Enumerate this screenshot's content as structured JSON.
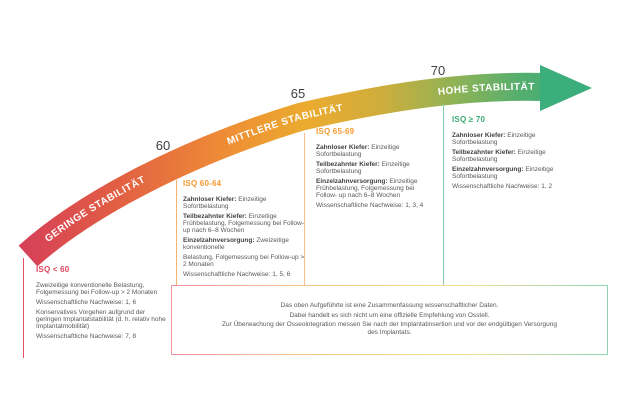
{
  "band": {
    "labels": {
      "low": "GERINGE STABILITÄT",
      "mid": "MITTLERE STABILITÄT",
      "high": "HOHE STABILITÄT"
    },
    "ticks": [
      "60",
      "65",
      "70"
    ],
    "gradient_stops": [
      "#d64059",
      "#e05a45",
      "#ee8b36",
      "#ecab2f",
      "#cfad3c",
      "#8fb356",
      "#52ae70",
      "#3bae7b"
    ],
    "arrowhead_color": "#3bae7b"
  },
  "columns": [
    {
      "title": "ISQ < 60",
      "title_color": "#e0445c",
      "line_color": "#e25064",
      "paragraphs": [
        {
          "lead": "",
          "text": "Zweizeitige konventionelle Belastung, Folgemessung bei Follow-up > 2 Monaten"
        },
        {
          "lead": "",
          "text": "Wissenschaftliche Nachweise: 1, 6"
        },
        {
          "lead": "",
          "text": "Konservatives Vorgehen aufgrund der geringen Implantatstabilität (d. h. relativ hohe Implantatmobilität)"
        },
        {
          "lead": "",
          "text": "Wissenschaftliche Nachweise: 7, 8"
        }
      ]
    },
    {
      "title": "ISQ 60-64",
      "title_color": "#f49a32",
      "line_color": "#f7b06d",
      "paragraphs": [
        {
          "lead": "Zahnloser Kiefer:",
          "text": "Einzeitige Sofortbelastung"
        },
        {
          "lead": "Teilbezahnter Kiefer:",
          "text": "Einzeitige Frühbelastung, Folgemessung bei Follow-up nach 6–8 Wochen"
        },
        {
          "lead": "Einzelzahnversorgung:",
          "text": "Zweizeitige konventionelle"
        },
        {
          "lead": "",
          "text": "Belastung, Folgemessung bei Follow-up > 2 Monaten"
        },
        {
          "lead": "",
          "text": "Wissenschaftliche Nachweise: 1, 5, 6"
        }
      ]
    },
    {
      "title": "ISQ 65-69",
      "title_color": "#f49a32",
      "line_color": "#f8bd8a",
      "paragraphs": [
        {
          "lead": "Zahnloser Kiefer:",
          "text": "Einzeitige Sofortbelastung"
        },
        {
          "lead": "Teilbezahnter Kiefer:",
          "text": "Einzeitige Sofortbelastung"
        },
        {
          "lead": "Einzelzahnversorgung:",
          "text": "Einzeitige Frühbelastung, Folgemessung bei Follow- up nach 6–8 Wochen"
        },
        {
          "lead": "",
          "text": "Wissenschaftliche Nachweise: 1, 3, 4"
        }
      ]
    },
    {
      "title": "ISQ ≥ 70",
      "title_color": "#3cab76",
      "line_color": "#86cba8",
      "paragraphs": [
        {
          "lead": "Zahnloser Kiefer:",
          "text": "Einzeitige Sofortbelastung"
        },
        {
          "lead": "Teilbezahnter Kiefer:",
          "text": "Einzeitige Sofortbelastung"
        },
        {
          "lead": "Einzelzahnversorgung:",
          "text": "Einzeitige Sofortbelastung"
        },
        {
          "lead": "",
          "text": "Wissenschaftliche Nachweise: 1, 2"
        }
      ]
    }
  ],
  "disclaimer": [
    "Das oben Aufgeführte ist eine Zusammenfassung wissenschaftlicher Daten.",
    "Dabei handelt es sich nicht um eine offizielle Empfehlung von Osstell.",
    "Zur Überwachung der Osseointegration messen Sie nach der Implantatinsertion und vor der endgültigen Versorgung des Implantats."
  ]
}
